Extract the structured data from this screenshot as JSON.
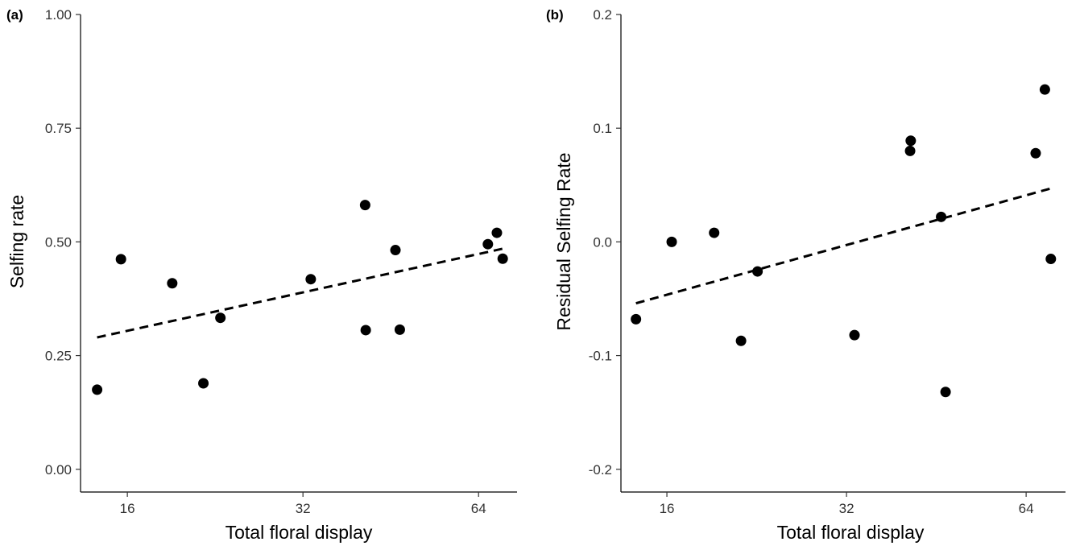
{
  "chart_data": [
    {
      "panel_label": "(a)",
      "type": "scatter",
      "xlabel": "Total floral display",
      "ylabel": "Selfing rate",
      "x_scale": "log2",
      "xlim": [
        13.3,
        74.5
      ],
      "ylim": [
        -0.05,
        1.0
      ],
      "x_ticks": [
        16,
        32,
        64
      ],
      "x_tick_labels": [
        "16",
        "32",
        "64"
      ],
      "y_ticks": [
        0.0,
        0.25,
        0.5,
        0.75,
        1.0
      ],
      "y_tick_labels": [
        "0.00",
        "0.25",
        "0.50",
        "0.75",
        "1.00"
      ],
      "grid": false,
      "series": [
        {
          "points": [
            {
              "x": 14.2,
              "y": 0.175
            },
            {
              "x": 15.6,
              "y": 0.462
            },
            {
              "x": 19.1,
              "y": 0.409
            },
            {
              "x": 21.6,
              "y": 0.189
            },
            {
              "x": 23.1,
              "y": 0.333
            },
            {
              "x": 33.0,
              "y": 0.418
            },
            {
              "x": 40.9,
              "y": 0.581
            },
            {
              "x": 41.0,
              "y": 0.306
            },
            {
              "x": 46.1,
              "y": 0.482
            },
            {
              "x": 46.9,
              "y": 0.307
            },
            {
              "x": 66.4,
              "y": 0.495
            },
            {
              "x": 68.8,
              "y": 0.52
            },
            {
              "x": 70.4,
              "y": 0.463
            }
          ]
        }
      ],
      "fit_line": {
        "style": "dashed",
        "x": [
          14.2,
          70.4
        ],
        "y": [
          0.29,
          0.485
        ]
      }
    },
    {
      "panel_label": "(b)",
      "type": "scatter",
      "xlabel": "Total floral display",
      "ylabel": "Residual Selfing Rate",
      "x_scale": "log2",
      "xlim": [
        13.4,
        74.5
      ],
      "ylim": [
        -0.22,
        0.2
      ],
      "x_ticks": [
        16,
        32,
        64
      ],
      "x_tick_labels": [
        "16",
        "32",
        "64"
      ],
      "y_ticks": [
        -0.2,
        -0.1,
        0.0,
        0.1,
        0.2
      ],
      "y_tick_labels": [
        "-0.2",
        "-0.1",
        "0.0",
        "0.1",
        "0.2"
      ],
      "grid": false,
      "series": [
        {
          "points": [
            {
              "x": 14.2,
              "y": -0.068
            },
            {
              "x": 16.3,
              "y": 0.0
            },
            {
              "x": 19.2,
              "y": 0.008
            },
            {
              "x": 21.3,
              "y": -0.087
            },
            {
              "x": 22.7,
              "y": -0.026
            },
            {
              "x": 33.0,
              "y": -0.082
            },
            {
              "x": 40.9,
              "y": 0.08
            },
            {
              "x": 41.0,
              "y": 0.089
            },
            {
              "x": 46.1,
              "y": 0.022
            },
            {
              "x": 46.9,
              "y": -0.132
            },
            {
              "x": 66.4,
              "y": 0.078
            },
            {
              "x": 68.8,
              "y": 0.134
            },
            {
              "x": 70.4,
              "y": -0.015
            }
          ]
        }
      ],
      "fit_line": {
        "style": "dashed",
        "x": [
          14.2,
          70.4
        ],
        "y": [
          -0.054,
          0.047
        ]
      }
    }
  ]
}
